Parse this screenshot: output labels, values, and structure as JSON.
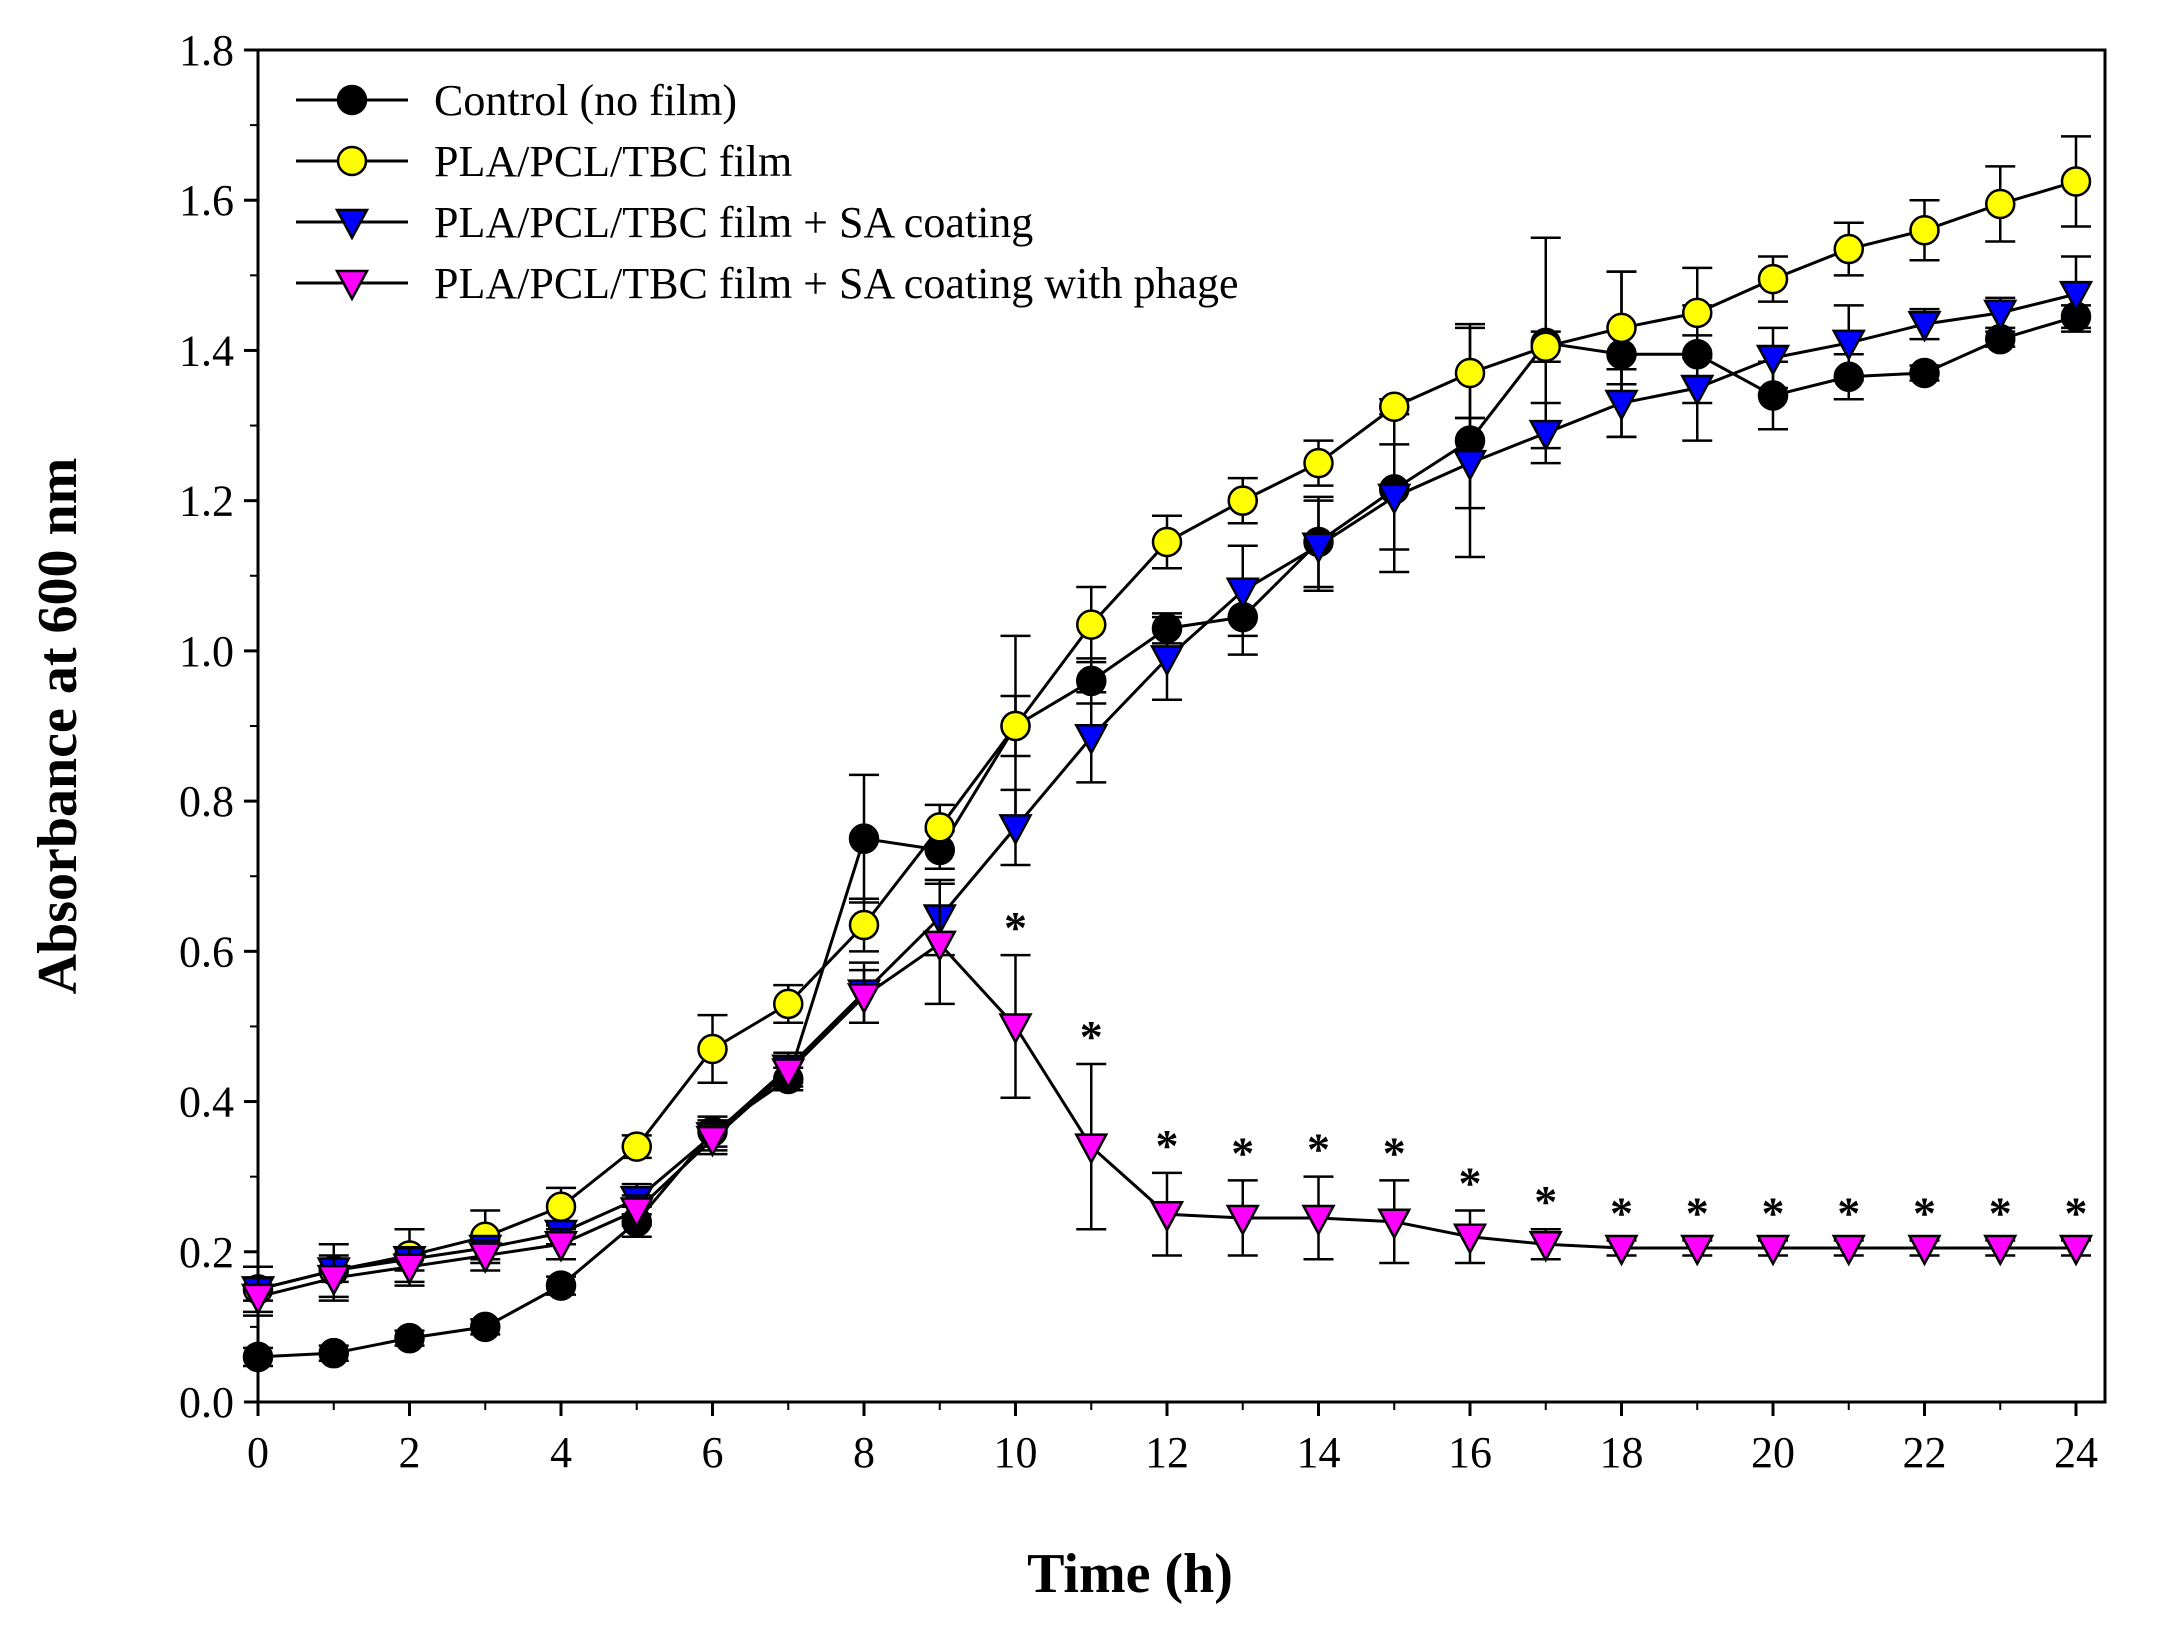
{
  "chart_data": {
    "type": "line",
    "xlabel": "Time (h)",
    "ylabel": "Absorbance at 600 nm",
    "xlim": [
      0,
      24
    ],
    "ylim": [
      0.0,
      1.8
    ],
    "x_ticks": [
      "0",
      "2",
      "4",
      "6",
      "8",
      "10",
      "12",
      "14",
      "16",
      "18",
      "20",
      "22",
      "24"
    ],
    "y_ticks": [
      "0.0",
      "0.2",
      "0.4",
      "0.6",
      "0.8",
      "1.0",
      "1.2",
      "1.4",
      "1.6",
      "1.8"
    ],
    "grid": false,
    "legend_position": "top-left",
    "x": [
      0,
      1,
      2,
      3,
      4,
      5,
      6,
      7,
      8,
      9,
      10,
      11,
      12,
      13,
      14,
      15,
      16,
      17,
      18,
      19,
      20,
      21,
      22,
      23,
      24
    ],
    "series": [
      {
        "name": "Control (no film)",
        "marker": "circle",
        "color": "#000000",
        "values": [
          0.06,
          0.065,
          0.085,
          0.1,
          0.155,
          0.24,
          0.36,
          0.43,
          0.75,
          0.735,
          0.9,
          0.96,
          1.03,
          1.045,
          1.145,
          1.215,
          1.28,
          1.41,
          1.395,
          1.395,
          1.34,
          1.365,
          1.37,
          1.415,
          1.445
        ],
        "errors": [
          0.012,
          0.01,
          0.01,
          0.01,
          0.012,
          0.02,
          0.02,
          0.015,
          0.085,
          0.025,
          0.04,
          0.03,
          0.02,
          0.05,
          0.06,
          0.11,
          0.155,
          0.14,
          0.11,
          0.065,
          0.045,
          0.03,
          0.01,
          0.01,
          0.015
        ]
      },
      {
        "name": "PLA/PCL/TBC film",
        "marker": "circle",
        "color": "#ffff00",
        "values": [
          0.15,
          0.175,
          0.195,
          0.22,
          0.26,
          0.34,
          0.47,
          0.53,
          0.635,
          0.765,
          0.9,
          1.035,
          1.145,
          1.2,
          1.25,
          1.325,
          1.37,
          1.405,
          1.43,
          1.45,
          1.495,
          1.535,
          1.56,
          1.595,
          1.625
        ],
        "errors": [
          0.03,
          0.035,
          0.035,
          0.035,
          0.025,
          0.015,
          0.045,
          0.025,
          0.035,
          0.03,
          0.12,
          0.05,
          0.035,
          0.03,
          0.03,
          0.01,
          0.06,
          0.02,
          0.075,
          0.06,
          0.03,
          0.035,
          0.04,
          0.05,
          0.06
        ]
      },
      {
        "name": "PLA/PCL/TBC film + SA coating",
        "marker": "triangle-down",
        "color": "#0000ff",
        "values": [
          0.15,
          0.175,
          0.19,
          0.205,
          0.225,
          0.27,
          0.355,
          0.445,
          0.545,
          0.645,
          0.765,
          0.885,
          0.99,
          1.08,
          1.14,
          1.205,
          1.25,
          1.29,
          1.33,
          1.35,
          1.39,
          1.41,
          1.435,
          1.45,
          1.475
        ],
        "errors": [
          0.015,
          0.015,
          0.015,
          0.015,
          0.015,
          0.02,
          0.02,
          0.02,
          0.04,
          0.05,
          0.05,
          0.06,
          0.055,
          0.06,
          0.06,
          0.07,
          0.06,
          0.04,
          0.045,
          0.07,
          0.04,
          0.05,
          0.02,
          0.02,
          0.05
        ]
      },
      {
        "name": "PLA/PCL/TBC film + SA coating with phage",
        "marker": "triangle-down",
        "color": "#ff00ff",
        "values": [
          0.14,
          0.165,
          0.18,
          0.195,
          0.21,
          0.255,
          0.35,
          0.44,
          0.54,
          0.61,
          0.5,
          0.34,
          0.25,
          0.245,
          0.245,
          0.24,
          0.22,
          0.21,
          0.205,
          0.205,
          0.205,
          0.205,
          0.205,
          0.205,
          0.205
        ],
        "errors": [
          0.025,
          0.03,
          0.025,
          0.02,
          0.02,
          0.02,
          0.02,
          0.02,
          0.035,
          0.08,
          0.095,
          0.11,
          0.055,
          0.05,
          0.055,
          0.055,
          0.035,
          0.02,
          0.01,
          0.01,
          0.01,
          0.01,
          0.01,
          0.01,
          0.01
        ]
      }
    ],
    "significance": {
      "marker": "*",
      "x": [
        10,
        11,
        12,
        13,
        14,
        15,
        16,
        17,
        18,
        19,
        20,
        21,
        22,
        23,
        24
      ]
    }
  }
}
